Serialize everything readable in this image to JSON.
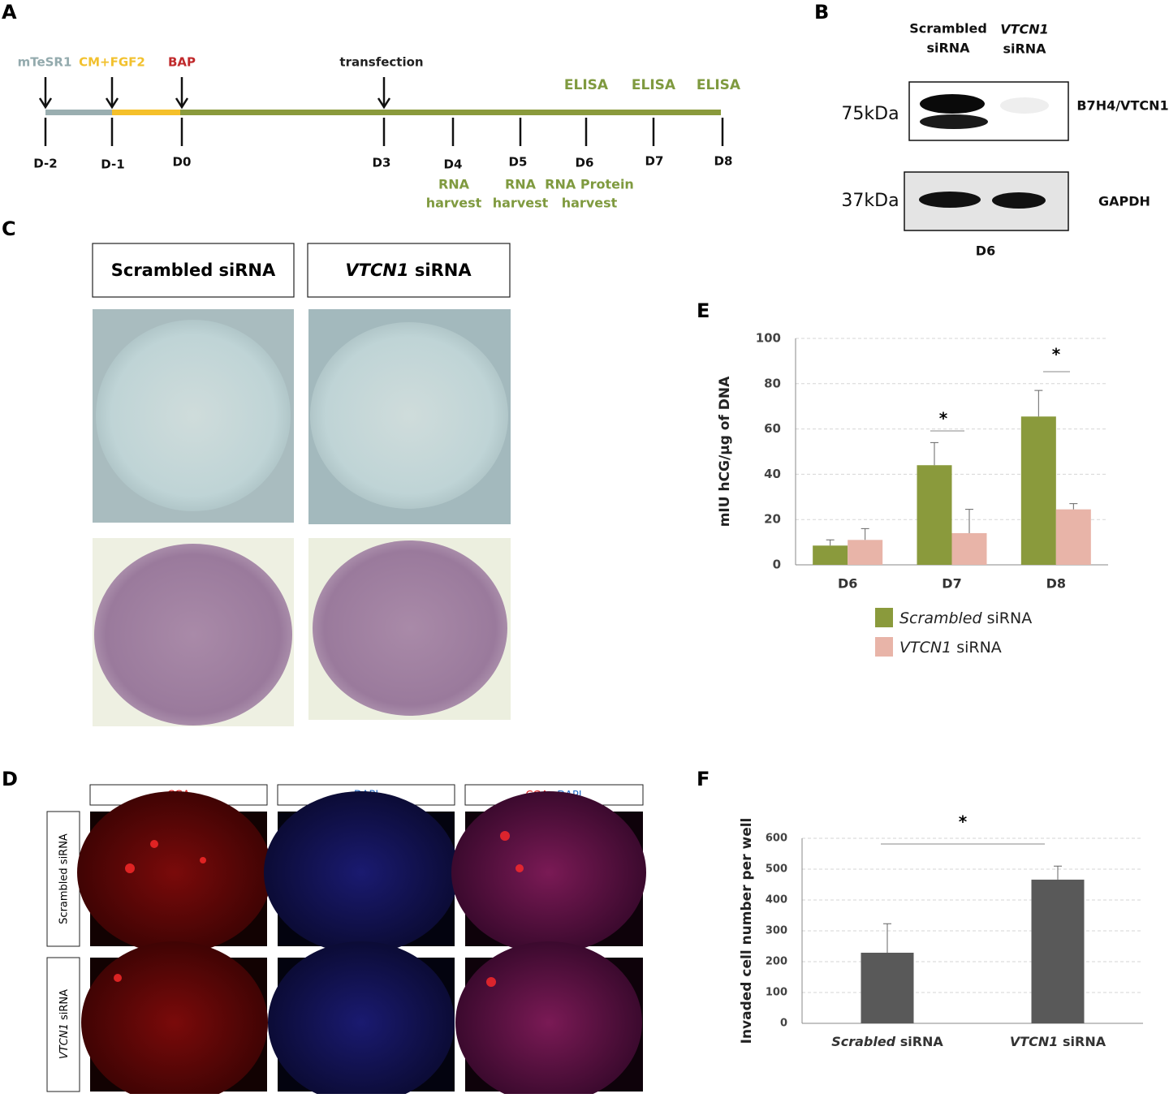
{
  "panel_a": {
    "label": "A",
    "media": [
      "mTeSR1",
      "CM+FGF2",
      "BAP"
    ],
    "event": "transfection",
    "elisa": [
      "ELISA",
      "ELISA",
      "ELISA"
    ],
    "days": [
      "D-2",
      "D-1",
      "D0",
      "D3",
      "D4",
      "D5",
      "D6",
      "D7",
      "D8"
    ],
    "harvest": [
      [
        "RNA",
        "harvest"
      ],
      [
        "RNA",
        "harvest"
      ],
      [
        "RNA Protein",
        "harvest"
      ]
    ]
  },
  "panel_b": {
    "label": "B",
    "columns": [
      [
        "Scrambled",
        "siRNA"
      ],
      [
        "VTCN1",
        "siRNA"
      ]
    ],
    "markers": [
      "75kDa",
      "37kDa"
    ],
    "proteins": [
      "B7H4/VTCN1",
      "GAPDH"
    ],
    "day": "D6"
  },
  "panel_c": {
    "label": "C",
    "columns": [
      "Scrambled siRNA",
      "VTCN1 siRNA"
    ]
  },
  "panel_d": {
    "label": "D",
    "columns": [
      [
        "CGA"
      ],
      [
        "DAPI"
      ],
      [
        "CGA",
        "+DAPI"
      ]
    ],
    "rows": [
      "Scrambled siRNA",
      "VTCN1 siRNA"
    ]
  },
  "chart_data": [
    {
      "type": "bar",
      "panel_label": "E",
      "y_label": "mIU hCG/µg of DNA",
      "categories": [
        "D6",
        "D7",
        "D8"
      ],
      "series": [
        {
          "name": "Scrambled siRNA",
          "color": "#8a9a3c",
          "values": [
            8.5,
            44,
            65.5
          ],
          "errors": [
            2.5,
            10,
            11.5
          ]
        },
        {
          "name": "VTCN1 siRNA",
          "color": "#e8b4a8",
          "values": [
            11,
            14,
            24.5
          ],
          "errors": [
            5,
            10.5,
            2.5
          ]
        }
      ],
      "ylim": [
        0,
        100
      ],
      "yticks": [
        0,
        20,
        40,
        60,
        80,
        100
      ],
      "grid": true,
      "annotations": [
        "*",
        "*"
      ]
    },
    {
      "type": "bar",
      "panel_label": "F",
      "y_label": "Invaded cell number per well",
      "categories": [
        "Scrabled siRNA",
        "VTCN1 siRNA"
      ],
      "series": [
        {
          "color": "#595959",
          "values": [
            229,
            466
          ],
          "errors": [
            94,
            44
          ]
        }
      ],
      "ylim": [
        0,
        600
      ],
      "yticks": [
        0,
        100,
        200,
        300,
        400,
        500,
        600
      ],
      "grid": true,
      "annotations": [
        "*"
      ]
    }
  ]
}
